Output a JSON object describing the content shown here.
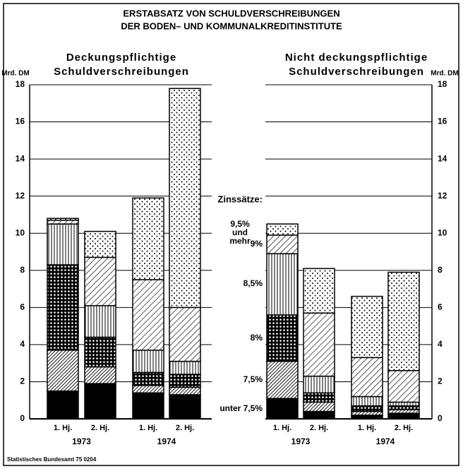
{
  "title": [
    "ERSTABSATZ VON SCHULDVERSCHREIBUNGEN",
    "DER BODEN– UND KOMMUNALKREDITINSTITUTE"
  ],
  "source": "Statistisches Bundesamt 75 0204",
  "chart_data": [
    {
      "type": "bar",
      "stacked": true,
      "title": [
        "Deckungspflichtige",
        "Schuldverschreibungen"
      ],
      "y_label": "Mrd. DM",
      "axis_side": "left",
      "categories": [
        "1. Hj.",
        "2. Hj.",
        "1. Hj.",
        "2. Hj."
      ],
      "category_groups": [
        "1973",
        "1974"
      ],
      "ylim": [
        0,
        18
      ],
      "yticks": [
        0,
        2,
        4,
        6,
        8,
        10,
        12,
        14,
        16,
        18
      ],
      "grid": true,
      "series": [
        {
          "color": "#000",
          "pattern": "solid",
          "values": [
            1.5,
            1.9,
            1.4,
            1.3
          ]
        },
        {
          "color": "#000",
          "pattern": "dense-hatch",
          "values": [
            2.2,
            0.9,
            0.4,
            0.4
          ]
        },
        {
          "color": "#000",
          "pattern": "crosshatch",
          "values": [
            4.6,
            1.6,
            0.7,
            0.7
          ]
        },
        {
          "color": "#000",
          "pattern": "vertical",
          "values": [
            2.2,
            1.7,
            1.2,
            0.7
          ]
        },
        {
          "color": "#000",
          "pattern": "hatch",
          "values": [
            0.2,
            2.6,
            3.8,
            2.9
          ]
        },
        {
          "color": "#000",
          "pattern": "dots",
          "values": [
            0.1,
            1.4,
            4.4,
            11.8
          ]
        }
      ]
    },
    {
      "type": "bar",
      "stacked": true,
      "title": [
        "Nicht deckungspflichtige",
        "Schuldverschreibungen"
      ],
      "y_label": "Mrd. DM",
      "axis_side": "right",
      "legend_title": "Zinssätze:",
      "categories": [
        "1. Hj.",
        "2. Hj.",
        "1. Hj.",
        "2. Hj."
      ],
      "category_groups": [
        "1973",
        "1974"
      ],
      "ylim": [
        0,
        18
      ],
      "yticks": [
        0,
        2,
        4,
        6,
        8,
        10,
        12,
        14,
        16,
        18
      ],
      "grid": true,
      "series": [
        {
          "name": "unter 7,5%",
          "color": "#000",
          "pattern": "solid",
          "values": [
            1.1,
            0.4,
            0.2,
            0.3
          ]
        },
        {
          "name": "7,5%",
          "color": "#000",
          "pattern": "dense-hatch",
          "values": [
            2.0,
            0.5,
            0.2,
            0.2
          ]
        },
        {
          "name": "8%",
          "color": "#000",
          "pattern": "crosshatch",
          "values": [
            2.5,
            0.5,
            0.3,
            0.2
          ]
        },
        {
          "name": "8,5%",
          "color": "#000",
          "pattern": "vertical",
          "values": [
            3.3,
            0.9,
            0.5,
            0.2
          ]
        },
        {
          "name": "9%",
          "color": "#000",
          "pattern": "hatch",
          "values": [
            1.0,
            3.4,
            2.1,
            1.7
          ]
        },
        {
          "name": "9,5% und mehr",
          "color": "#000",
          "pattern": "dots",
          "values": [
            0.6,
            2.4,
            3.3,
            5.3
          ]
        }
      ]
    }
  ]
}
